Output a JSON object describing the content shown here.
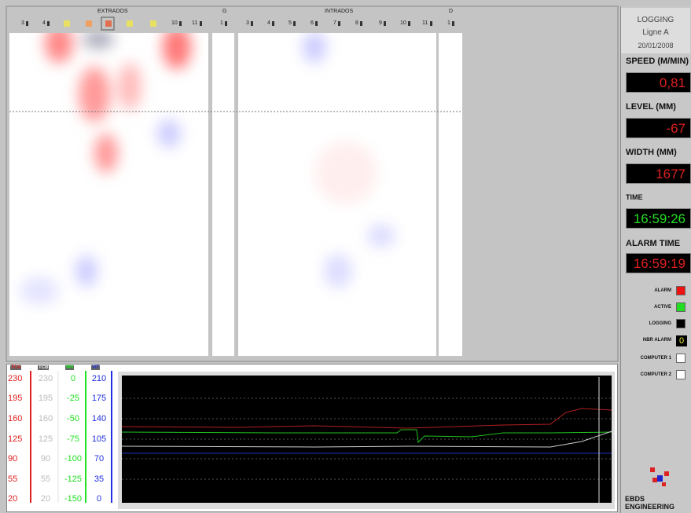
{
  "header": {
    "extrados": "EXTRADOS",
    "g": "G",
    "intrados": "INTRADOS",
    "d": "D",
    "extrados_columns": [
      "3",
      "4",
      "10",
      "11"
    ],
    "g_columns": [
      "1"
    ],
    "intrados_columns": [
      "3",
      "4",
      "5",
      "6",
      "7",
      "8",
      "9",
      "10",
      "11"
    ],
    "d_columns": [
      "1"
    ]
  },
  "trend": {
    "axes": [
      {
        "name": "TCA",
        "color": "#e02020",
        "ticks": [
          230,
          195,
          160,
          125,
          90,
          55,
          20
        ]
      },
      {
        "name": "TCB",
        "color": "#f0f0f0",
        "ticks": [
          230,
          195,
          160,
          125,
          90,
          55,
          20
        ]
      },
      {
        "name": "MH",
        "color": "#20e020",
        "ticks": [
          0,
          -25,
          -50,
          -75,
          -100,
          -125,
          -150
        ]
      },
      {
        "name": "VIT",
        "color": "#2030e0",
        "ticks": [
          210,
          175,
          140,
          105,
          70,
          35,
          0
        ]
      }
    ]
  },
  "status": {
    "logging": "LOGGING",
    "line": "Ligne A",
    "date": "20/01/2008",
    "speed_label": "SPEED (M/MIN)",
    "speed": "0,81",
    "level_label": "LEVEL (MM)",
    "level": "-67",
    "width_label": "WIDTH (MM)",
    "width": "1677",
    "time_label": "TIME",
    "time": "16:59:26",
    "alarm_time_label": "ALARM TIME",
    "alarm_time": "16:59:19",
    "indicators": [
      {
        "label": "ALARM",
        "color": "#ee1111"
      },
      {
        "label": "ACTIVE",
        "color": "#22dd22"
      },
      {
        "label": "LOGGING",
        "color": "#000000"
      },
      {
        "label": "NBR ALARM",
        "value": "0"
      },
      {
        "label": "COMPUTER 1",
        "color": "#ffffff"
      },
      {
        "label": "COMPUTER 2",
        "color": "#ffffff"
      }
    ],
    "logo": "EBDS ENGINEERING"
  }
}
